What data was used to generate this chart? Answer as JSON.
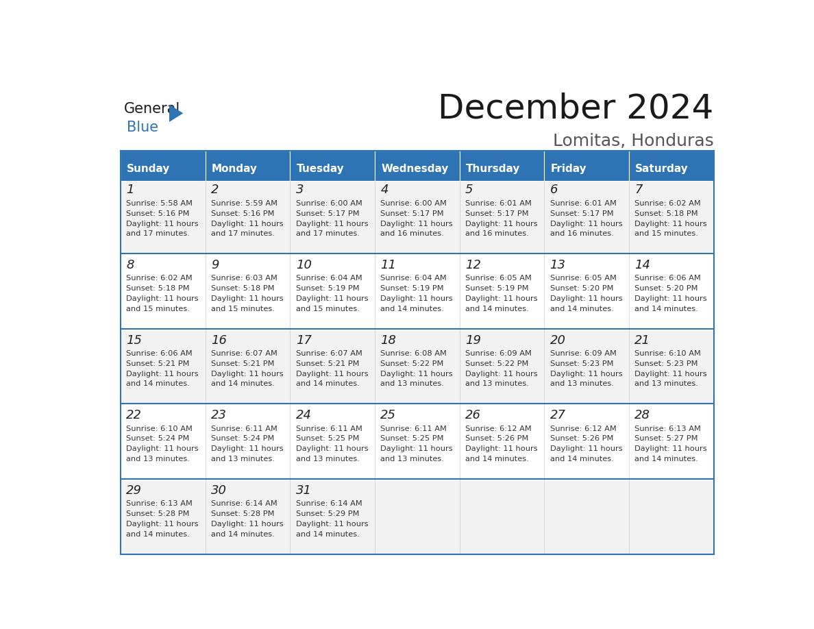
{
  "title": "December 2024",
  "subtitle": "Lomitas, Honduras",
  "header_color": "#2E74B5",
  "header_text_color": "#FFFFFF",
  "day_names": [
    "Sunday",
    "Monday",
    "Tuesday",
    "Wednesday",
    "Thursday",
    "Friday",
    "Saturday"
  ],
  "background_color": "#FFFFFF",
  "cell_bg_even": "#F2F2F2",
  "cell_bg_odd": "#FFFFFF",
  "row_line_color": "#2E74B5",
  "text_color": "#333333",
  "days": [
    {
      "day": 1,
      "row": 0,
      "col": 0,
      "sunrise": "5:58 AM",
      "sunset": "5:16 PM",
      "daylight_a": "11 hours",
      "daylight_b": "and 17 minutes."
    },
    {
      "day": 2,
      "row": 0,
      "col": 1,
      "sunrise": "5:59 AM",
      "sunset": "5:16 PM",
      "daylight_a": "11 hours",
      "daylight_b": "and 17 minutes."
    },
    {
      "day": 3,
      "row": 0,
      "col": 2,
      "sunrise": "6:00 AM",
      "sunset": "5:17 PM",
      "daylight_a": "11 hours",
      "daylight_b": "and 17 minutes."
    },
    {
      "day": 4,
      "row": 0,
      "col": 3,
      "sunrise": "6:00 AM",
      "sunset": "5:17 PM",
      "daylight_a": "11 hours",
      "daylight_b": "and 16 minutes."
    },
    {
      "day": 5,
      "row": 0,
      "col": 4,
      "sunrise": "6:01 AM",
      "sunset": "5:17 PM",
      "daylight_a": "11 hours",
      "daylight_b": "and 16 minutes."
    },
    {
      "day": 6,
      "row": 0,
      "col": 5,
      "sunrise": "6:01 AM",
      "sunset": "5:17 PM",
      "daylight_a": "11 hours",
      "daylight_b": "and 16 minutes."
    },
    {
      "day": 7,
      "row": 0,
      "col": 6,
      "sunrise": "6:02 AM",
      "sunset": "5:18 PM",
      "daylight_a": "11 hours",
      "daylight_b": "and 15 minutes."
    },
    {
      "day": 8,
      "row": 1,
      "col": 0,
      "sunrise": "6:02 AM",
      "sunset": "5:18 PM",
      "daylight_a": "11 hours",
      "daylight_b": "and 15 minutes."
    },
    {
      "day": 9,
      "row": 1,
      "col": 1,
      "sunrise": "6:03 AM",
      "sunset": "5:18 PM",
      "daylight_a": "11 hours",
      "daylight_b": "and 15 minutes."
    },
    {
      "day": 10,
      "row": 1,
      "col": 2,
      "sunrise": "6:04 AM",
      "sunset": "5:19 PM",
      "daylight_a": "11 hours",
      "daylight_b": "and 15 minutes."
    },
    {
      "day": 11,
      "row": 1,
      "col": 3,
      "sunrise": "6:04 AM",
      "sunset": "5:19 PM",
      "daylight_a": "11 hours",
      "daylight_b": "and 14 minutes."
    },
    {
      "day": 12,
      "row": 1,
      "col": 4,
      "sunrise": "6:05 AM",
      "sunset": "5:19 PM",
      "daylight_a": "11 hours",
      "daylight_b": "and 14 minutes."
    },
    {
      "day": 13,
      "row": 1,
      "col": 5,
      "sunrise": "6:05 AM",
      "sunset": "5:20 PM",
      "daylight_a": "11 hours",
      "daylight_b": "and 14 minutes."
    },
    {
      "day": 14,
      "row": 1,
      "col": 6,
      "sunrise": "6:06 AM",
      "sunset": "5:20 PM",
      "daylight_a": "11 hours",
      "daylight_b": "and 14 minutes."
    },
    {
      "day": 15,
      "row": 2,
      "col": 0,
      "sunrise": "6:06 AM",
      "sunset": "5:21 PM",
      "daylight_a": "11 hours",
      "daylight_b": "and 14 minutes."
    },
    {
      "day": 16,
      "row": 2,
      "col": 1,
      "sunrise": "6:07 AM",
      "sunset": "5:21 PM",
      "daylight_a": "11 hours",
      "daylight_b": "and 14 minutes."
    },
    {
      "day": 17,
      "row": 2,
      "col": 2,
      "sunrise": "6:07 AM",
      "sunset": "5:21 PM",
      "daylight_a": "11 hours",
      "daylight_b": "and 14 minutes."
    },
    {
      "day": 18,
      "row": 2,
      "col": 3,
      "sunrise": "6:08 AM",
      "sunset": "5:22 PM",
      "daylight_a": "11 hours",
      "daylight_b": "and 13 minutes."
    },
    {
      "day": 19,
      "row": 2,
      "col": 4,
      "sunrise": "6:09 AM",
      "sunset": "5:22 PM",
      "daylight_a": "11 hours",
      "daylight_b": "and 13 minutes."
    },
    {
      "day": 20,
      "row": 2,
      "col": 5,
      "sunrise": "6:09 AM",
      "sunset": "5:23 PM",
      "daylight_a": "11 hours",
      "daylight_b": "and 13 minutes."
    },
    {
      "day": 21,
      "row": 2,
      "col": 6,
      "sunrise": "6:10 AM",
      "sunset": "5:23 PM",
      "daylight_a": "11 hours",
      "daylight_b": "and 13 minutes."
    },
    {
      "day": 22,
      "row": 3,
      "col": 0,
      "sunrise": "6:10 AM",
      "sunset": "5:24 PM",
      "daylight_a": "11 hours",
      "daylight_b": "and 13 minutes."
    },
    {
      "day": 23,
      "row": 3,
      "col": 1,
      "sunrise": "6:11 AM",
      "sunset": "5:24 PM",
      "daylight_a": "11 hours",
      "daylight_b": "and 13 minutes."
    },
    {
      "day": 24,
      "row": 3,
      "col": 2,
      "sunrise": "6:11 AM",
      "sunset": "5:25 PM",
      "daylight_a": "11 hours",
      "daylight_b": "and 13 minutes."
    },
    {
      "day": 25,
      "row": 3,
      "col": 3,
      "sunrise": "6:11 AM",
      "sunset": "5:25 PM",
      "daylight_a": "11 hours",
      "daylight_b": "and 13 minutes."
    },
    {
      "day": 26,
      "row": 3,
      "col": 4,
      "sunrise": "6:12 AM",
      "sunset": "5:26 PM",
      "daylight_a": "11 hours",
      "daylight_b": "and 14 minutes."
    },
    {
      "day": 27,
      "row": 3,
      "col": 5,
      "sunrise": "6:12 AM",
      "sunset": "5:26 PM",
      "daylight_a": "11 hours",
      "daylight_b": "and 14 minutes."
    },
    {
      "day": 28,
      "row": 3,
      "col": 6,
      "sunrise": "6:13 AM",
      "sunset": "5:27 PM",
      "daylight_a": "11 hours",
      "daylight_b": "and 14 minutes."
    },
    {
      "day": 29,
      "row": 4,
      "col": 0,
      "sunrise": "6:13 AM",
      "sunset": "5:28 PM",
      "daylight_a": "11 hours",
      "daylight_b": "and 14 minutes."
    },
    {
      "day": 30,
      "row": 4,
      "col": 1,
      "sunrise": "6:14 AM",
      "sunset": "5:28 PM",
      "daylight_a": "11 hours",
      "daylight_b": "and 14 minutes."
    },
    {
      "day": 31,
      "row": 4,
      "col": 2,
      "sunrise": "6:14 AM",
      "sunset": "5:29 PM",
      "daylight_a": "11 hours",
      "daylight_b": "and 14 minutes."
    }
  ]
}
